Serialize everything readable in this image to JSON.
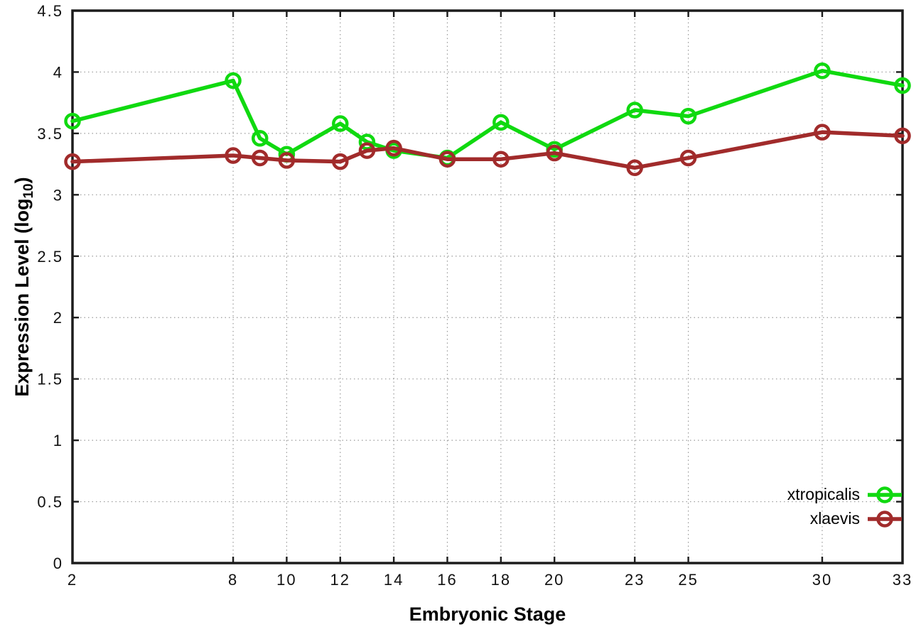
{
  "labels": {
    "xlabel": "Embryonic Stage",
    "ylabel_main": "Expression Level (log",
    "ylabel_sub": "10",
    "ylabel_close": ")"
  },
  "chart_data": {
    "type": "line",
    "title": "",
    "xlabel": "Embryonic Stage",
    "ylabel": "Expression Level (log10)",
    "xlim": [
      2,
      33
    ],
    "ylim": [
      0,
      4.5
    ],
    "xticks": [
      2,
      8,
      10,
      12,
      14,
      16,
      18,
      20,
      23,
      25,
      30,
      33
    ],
    "yticks": [
      0,
      0.5,
      1,
      1.5,
      2,
      2.5,
      3,
      3.5,
      4,
      4.5
    ],
    "grid": true,
    "marker": "open-circle",
    "legend_position": "inside-bottom-right",
    "background": "#ffffff",
    "grid_color": "#9a9a9a",
    "axis_color": "#1c1c1c",
    "x": [
      2,
      8,
      9,
      10,
      12,
      13,
      14,
      16,
      18,
      20,
      23,
      25,
      30,
      33
    ],
    "series": [
      {
        "name": "xtropicalis",
        "color": "#10d910",
        "values": [
          3.6,
          3.93,
          3.46,
          3.33,
          3.58,
          3.43,
          3.36,
          3.3,
          3.59,
          3.37,
          3.69,
          3.64,
          4.01,
          3.89
        ]
      },
      {
        "name": "xlaevis",
        "color": "#a12b2b",
        "values": [
          3.27,
          3.32,
          3.3,
          3.28,
          3.27,
          3.36,
          3.38,
          3.29,
          3.29,
          3.34,
          3.22,
          3.3,
          3.51,
          3.48
        ]
      }
    ]
  }
}
